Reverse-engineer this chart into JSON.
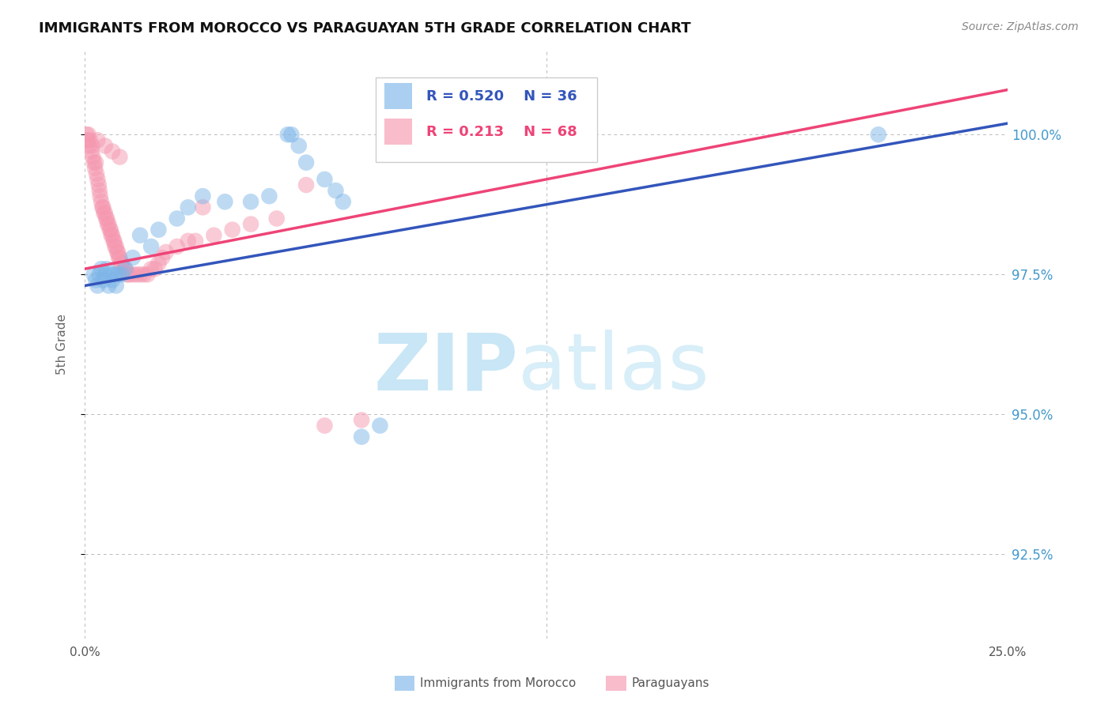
{
  "title": "IMMIGRANTS FROM MOROCCO VS PARAGUAYAN 5TH GRADE CORRELATION CHART",
  "source_text": "Source: ZipAtlas.com",
  "ylabel": "5th Grade",
  "xlim": [
    0.0,
    25.0
  ],
  "ylim": [
    91.0,
    101.5
  ],
  "blue_R": 0.52,
  "blue_N": 36,
  "pink_R": 0.213,
  "pink_N": 68,
  "blue_color": "#7EB6E8",
  "pink_color": "#F598B0",
  "blue_line_color": "#3355BB",
  "pink_line_color": "#EE4477",
  "watermark_zip": "ZIP",
  "watermark_atlas": "atlas",
  "watermark_color": "#C8E6F5",
  "background_color": "#ffffff",
  "grid_color": "#bbbbbb",
  "yticks": [
    92.5,
    95.0,
    97.5,
    100.0
  ],
  "ytick_labels": [
    "92.5%",
    "95.0%",
    "97.5%",
    "100.0%"
  ],
  "blue_line_x0": 0.0,
  "blue_line_y0": 97.3,
  "blue_line_x1": 25.0,
  "blue_line_y1": 100.2,
  "pink_line_x0": 0.0,
  "pink_line_y0": 97.6,
  "pink_line_x1": 25.0,
  "pink_line_y1": 100.8,
  "blue_scatter_x": [
    0.25,
    0.3,
    0.35,
    0.4,
    0.45,
    0.5,
    0.55,
    0.6,
    0.65,
    0.7,
    0.75,
    0.8,
    0.85,
    0.9,
    1.0,
    1.1,
    1.3,
    1.5,
    1.8,
    2.0,
    2.5,
    2.8,
    3.2,
    4.5,
    5.5,
    5.6,
    5.8,
    6.0,
    6.5,
    6.8,
    7.0,
    7.5,
    8.0,
    21.5,
    3.8,
    5.0
  ],
  "blue_scatter_y": [
    97.5,
    97.4,
    97.3,
    97.5,
    97.6,
    97.4,
    97.5,
    97.6,
    97.3,
    97.5,
    97.4,
    97.5,
    97.3,
    97.5,
    97.5,
    97.6,
    97.8,
    98.2,
    98.0,
    98.3,
    98.5,
    98.7,
    98.9,
    98.8,
    100.0,
    100.0,
    99.8,
    99.5,
    99.2,
    99.0,
    98.8,
    94.6,
    94.8,
    100.0,
    98.8,
    98.9
  ],
  "pink_scatter_x": [
    0.05,
    0.08,
    0.1,
    0.12,
    0.15,
    0.18,
    0.2,
    0.22,
    0.25,
    0.28,
    0.3,
    0.32,
    0.35,
    0.38,
    0.4,
    0.42,
    0.45,
    0.48,
    0.5,
    0.52,
    0.55,
    0.58,
    0.6,
    0.62,
    0.65,
    0.68,
    0.7,
    0.72,
    0.75,
    0.78,
    0.8,
    0.82,
    0.85,
    0.88,
    0.9,
    0.92,
    0.95,
    0.98,
    1.0,
    1.05,
    1.1,
    1.15,
    1.2,
    1.3,
    1.4,
    1.5,
    1.6,
    1.7,
    1.8,
    1.9,
    2.0,
    2.1,
    2.2,
    2.5,
    2.8,
    3.0,
    3.5,
    4.0,
    4.5,
    5.2,
    6.5,
    7.5,
    0.35,
    0.55,
    0.75,
    0.95,
    3.2,
    6.0
  ],
  "pink_scatter_y": [
    100.0,
    99.9,
    100.0,
    99.8,
    99.9,
    99.7,
    99.8,
    99.6,
    99.5,
    99.4,
    99.5,
    99.3,
    99.2,
    99.1,
    99.0,
    98.9,
    98.8,
    98.7,
    98.7,
    98.6,
    98.6,
    98.5,
    98.5,
    98.4,
    98.4,
    98.3,
    98.3,
    98.2,
    98.2,
    98.1,
    98.1,
    98.0,
    98.0,
    97.9,
    97.9,
    97.8,
    97.8,
    97.7,
    97.7,
    97.6,
    97.6,
    97.5,
    97.5,
    97.5,
    97.5,
    97.5,
    97.5,
    97.5,
    97.6,
    97.6,
    97.7,
    97.8,
    97.9,
    98.0,
    98.1,
    98.1,
    98.2,
    98.3,
    98.4,
    98.5,
    94.8,
    94.9,
    99.9,
    99.8,
    99.7,
    99.6,
    98.7,
    99.1
  ]
}
